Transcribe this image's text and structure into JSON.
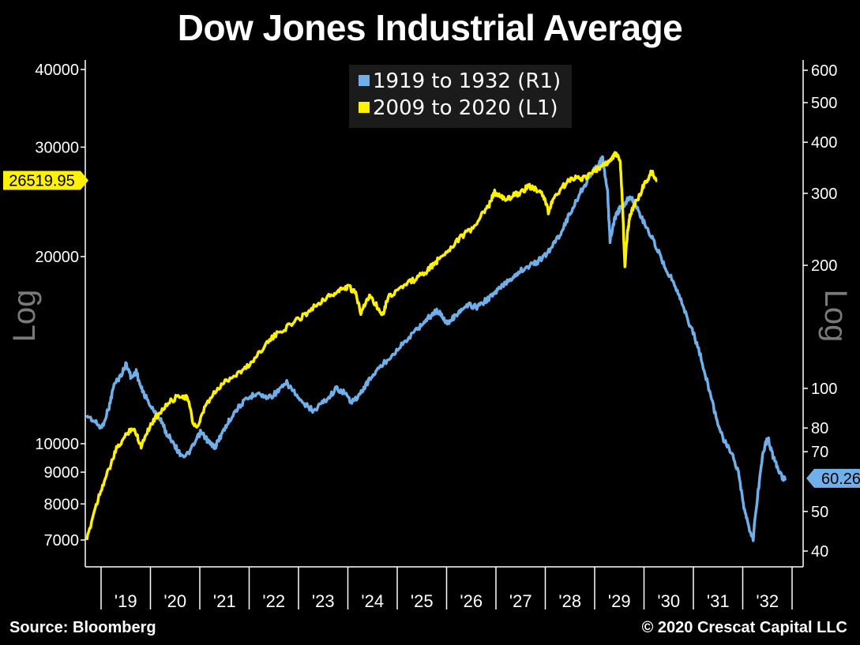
{
  "page": {
    "title": "Dow Jones Industrial Average",
    "source": "Source: Bloomberg",
    "copyright": "© 2020 Crescat Capital LLC"
  },
  "colors": {
    "blue": "#6fb0ea",
    "yellow": "#fff200",
    "axis": "#ffffff",
    "log_label": "#7a7a7a"
  },
  "chart_data": {
    "type": "line",
    "title": "Dow Jones Industrial Average",
    "x_label_years": [
      "'19",
      "'20",
      "'21",
      "'22",
      "'23",
      "'24",
      "'25",
      "'26",
      "'27",
      "'28",
      "'29",
      "'30",
      "'31",
      "'32"
    ],
    "left_axis": {
      "label": "Log",
      "scale": "log",
      "range": [
        6000,
        42000
      ],
      "ticks": [
        40000,
        30000,
        20000,
        10000,
        9000,
        8000,
        7000
      ]
    },
    "right_axis": {
      "label": "Log",
      "scale": "log",
      "range": [
        38,
        650
      ],
      "ticks": [
        600,
        500,
        400,
        300,
        200,
        100,
        80,
        70,
        50,
        40
      ]
    },
    "legend": [
      {
        "name": "1919 to 1932 (R1)",
        "color": "#6fb0ea"
      },
      {
        "name": "2009 to 2020 (L1)",
        "color": "#fff200"
      }
    ],
    "last_value_tags": {
      "left": "26519.95",
      "right": "60.26"
    },
    "series": [
      {
        "name": "1919 to 1932 (R1)",
        "axis": "right",
        "points": [
          [
            0.0,
            86
          ],
          [
            0.15,
            83
          ],
          [
            0.3,
            80
          ],
          [
            0.45,
            90
          ],
          [
            0.55,
            102
          ],
          [
            0.7,
            108
          ],
          [
            0.8,
            115
          ],
          [
            0.9,
            106
          ],
          [
            1.0,
            110
          ],
          [
            1.1,
            100
          ],
          [
            1.2,
            95
          ],
          [
            1.35,
            88
          ],
          [
            1.5,
            84
          ],
          [
            1.6,
            78
          ],
          [
            1.75,
            74
          ],
          [
            1.85,
            70
          ],
          [
            2.0,
            68
          ],
          [
            2.15,
            72
          ],
          [
            2.3,
            78
          ],
          [
            2.4,
            76
          ],
          [
            2.5,
            73
          ],
          [
            2.6,
            72
          ],
          [
            2.7,
            76
          ],
          [
            2.8,
            80
          ],
          [
            2.9,
            84
          ],
          [
            3.0,
            88
          ],
          [
            3.15,
            92
          ],
          [
            3.3,
            95
          ],
          [
            3.45,
            98
          ],
          [
            3.6,
            95
          ],
          [
            3.75,
            96
          ],
          [
            3.9,
            99
          ],
          [
            4.05,
            103
          ],
          [
            4.2,
            98
          ],
          [
            4.35,
            92
          ],
          [
            4.5,
            90
          ],
          [
            4.6,
            88
          ],
          [
            4.75,
            92
          ],
          [
            4.9,
            95
          ],
          [
            5.05,
            100
          ],
          [
            5.2,
            98
          ],
          [
            5.35,
            93
          ],
          [
            5.5,
            95
          ],
          [
            5.65,
            102
          ],
          [
            5.8,
            108
          ],
          [
            5.95,
            113
          ],
          [
            6.1,
            118
          ],
          [
            6.3,
            125
          ],
          [
            6.5,
            132
          ],
          [
            6.7,
            140
          ],
          [
            6.85,
            146
          ],
          [
            7.0,
            152
          ],
          [
            7.1,
            155
          ],
          [
            7.2,
            150
          ],
          [
            7.3,
            145
          ],
          [
            7.4,
            148
          ],
          [
            7.5,
            152
          ],
          [
            7.6,
            155
          ],
          [
            7.75,
            160
          ],
          [
            7.9,
            158
          ],
          [
            8.05,
            163
          ],
          [
            8.2,
            168
          ],
          [
            8.35,
            175
          ],
          [
            8.5,
            182
          ],
          [
            8.65,
            188
          ],
          [
            8.8,
            195
          ],
          [
            9.0,
            200
          ],
          [
            9.15,
            205
          ],
          [
            9.3,
            212
          ],
          [
            9.45,
            225
          ],
          [
            9.6,
            240
          ],
          [
            9.75,
            262
          ],
          [
            9.9,
            285
          ],
          [
            10.05,
            310
          ],
          [
            10.2,
            330
          ],
          [
            10.35,
            352
          ],
          [
            10.45,
            365
          ],
          [
            10.55,
            300
          ],
          [
            10.6,
            230
          ],
          [
            10.7,
            262
          ],
          [
            10.8,
            275
          ],
          [
            10.9,
            282
          ],
          [
            11.0,
            295
          ],
          [
            11.1,
            285
          ],
          [
            11.25,
            260
          ],
          [
            11.4,
            240
          ],
          [
            11.55,
            220
          ],
          [
            11.7,
            200
          ],
          [
            11.85,
            185
          ],
          [
            12.0,
            170
          ],
          [
            12.15,
            150
          ],
          [
            12.3,
            135
          ],
          [
            12.45,
            118
          ],
          [
            12.6,
            100
          ],
          [
            12.75,
            85
          ],
          [
            12.9,
            75
          ],
          [
            13.05,
            70
          ],
          [
            13.2,
            62
          ],
          [
            13.3,
            52
          ],
          [
            13.4,
            46
          ],
          [
            13.5,
            43
          ],
          [
            13.6,
            56
          ],
          [
            13.7,
            70
          ],
          [
            13.8,
            76
          ],
          [
            13.9,
            68
          ],
          [
            14.0,
            64
          ],
          [
            14.1,
            60
          ],
          [
            14.15,
            60.26
          ]
        ]
      },
      {
        "name": "2009 to 2020 (L1)",
        "axis": "left",
        "points": [
          [
            0.0,
            7000
          ],
          [
            0.15,
            7800
          ],
          [
            0.3,
            8500
          ],
          [
            0.45,
            9100
          ],
          [
            0.6,
            9800
          ],
          [
            0.75,
            10200
          ],
          [
            0.9,
            10600
          ],
          [
            1.0,
            10400
          ],
          [
            1.1,
            9900
          ],
          [
            1.2,
            10400
          ],
          [
            1.35,
            10900
          ],
          [
            1.5,
            11300
          ],
          [
            1.7,
            11700
          ],
          [
            1.9,
            12000
          ],
          [
            2.05,
            11800
          ],
          [
            2.15,
            10800
          ],
          [
            2.25,
            10600
          ],
          [
            2.4,
            11500
          ],
          [
            2.6,
            12100
          ],
          [
            2.8,
            12600
          ],
          [
            3.0,
            12900
          ],
          [
            3.2,
            13200
          ],
          [
            3.4,
            13700
          ],
          [
            3.6,
            14400
          ],
          [
            3.8,
            14900
          ],
          [
            4.0,
            15300
          ],
          [
            4.2,
            15700
          ],
          [
            4.4,
            16100
          ],
          [
            4.6,
            16600
          ],
          [
            4.8,
            17100
          ],
          [
            5.0,
            17400
          ],
          [
            5.15,
            17700
          ],
          [
            5.3,
            17900
          ],
          [
            5.45,
            17400
          ],
          [
            5.55,
            16300
          ],
          [
            5.65,
            16900
          ],
          [
            5.75,
            17300
          ],
          [
            5.9,
            16500
          ],
          [
            6.0,
            16200
          ],
          [
            6.1,
            17200
          ],
          [
            6.3,
            17700
          ],
          [
            6.5,
            18100
          ],
          [
            6.7,
            18500
          ],
          [
            6.9,
            19000
          ],
          [
            7.05,
            19500
          ],
          [
            7.2,
            20100
          ],
          [
            7.4,
            20800
          ],
          [
            7.6,
            21600
          ],
          [
            7.8,
            22100
          ],
          [
            8.0,
            23300
          ],
          [
            8.15,
            24200
          ],
          [
            8.25,
            25400
          ],
          [
            8.35,
            25000
          ],
          [
            8.5,
            24700
          ],
          [
            8.65,
            25100
          ],
          [
            8.8,
            25400
          ],
          [
            8.95,
            26000
          ],
          [
            9.1,
            25600
          ],
          [
            9.25,
            25100
          ],
          [
            9.35,
            23600
          ],
          [
            9.45,
            24800
          ],
          [
            9.6,
            25700
          ],
          [
            9.75,
            26400
          ],
          [
            9.9,
            26900
          ],
          [
            10.05,
            26700
          ],
          [
            10.2,
            27100
          ],
          [
            10.35,
            27700
          ],
          [
            10.5,
            28100
          ],
          [
            10.6,
            28600
          ],
          [
            10.7,
            29200
          ],
          [
            10.8,
            28800
          ],
          [
            10.85,
            24500
          ],
          [
            10.9,
            19200
          ],
          [
            10.95,
            21800
          ],
          [
            11.0,
            23200
          ],
          [
            11.05,
            23800
          ],
          [
            11.15,
            24700
          ],
          [
            11.25,
            25700
          ],
          [
            11.35,
            26600
          ],
          [
            11.45,
            27400
          ],
          [
            11.55,
            26519.95
          ]
        ]
      }
    ]
  }
}
